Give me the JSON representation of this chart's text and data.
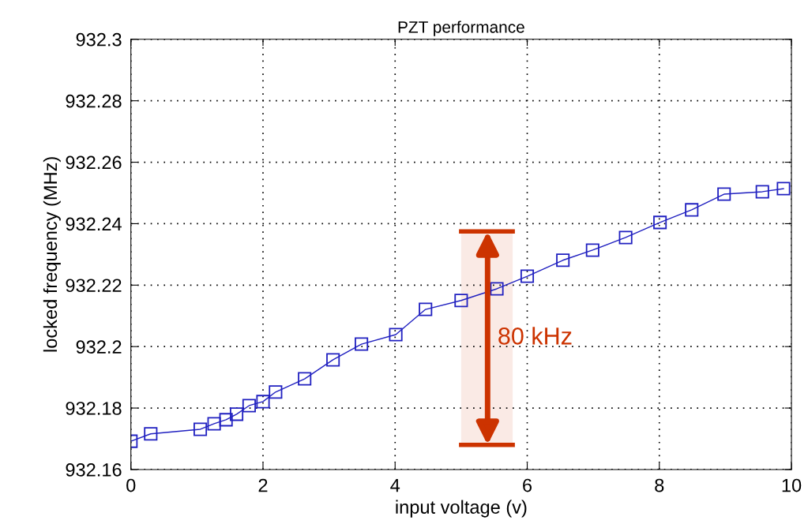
{
  "chart_data": {
    "type": "line",
    "title": "PZT performance",
    "xlabel": "input voltage (v)",
    "ylabel": "locked frequency (MHz)",
    "x": [
      0,
      0.3,
      1.05,
      1.26,
      1.44,
      1.6,
      1.79,
      2.0,
      2.19,
      2.63,
      3.06,
      3.49,
      4.01,
      4.46,
      5.0,
      5.54,
      6.0,
      6.54,
      6.99,
      7.49,
      8.01,
      8.49,
      8.98,
      9.56,
      9.88
    ],
    "series": [
      {
        "color": "#2020c0",
        "values": [
          932.1692,
          932.1716,
          932.1731,
          932.1749,
          932.1762,
          932.178,
          932.1808,
          932.1821,
          932.1852,
          932.1895,
          932.1957,
          932.2008,
          932.2039,
          932.2121,
          932.215,
          932.2188,
          932.2229,
          932.2281,
          932.2314,
          932.2355,
          932.2404,
          932.2445,
          932.2496,
          932.2504,
          932.2514
        ]
      }
    ],
    "xlim": [
      0,
      10
    ],
    "xticks": [
      0,
      2,
      4,
      6,
      8,
      10
    ],
    "ylim": [
      932.16,
      932.3
    ],
    "yticks": [
      {
        "value": 932.16,
        "label": "932.16"
      },
      {
        "value": 932.18,
        "label": "932.18"
      },
      {
        "value": 932.2,
        "label": "932.2"
      },
      {
        "value": 932.22,
        "label": "932.22"
      },
      {
        "value": 932.24,
        "label": "932.24"
      },
      {
        "value": 932.26,
        "label": "932.26"
      },
      {
        "value": 932.28,
        "label": "932.28"
      },
      {
        "value": 932.3,
        "label": "932.3"
      }
    ],
    "bands": [
      {
        "axis": "y",
        "from": 932.168,
        "to": 932.2375,
        "label": "80 kHz",
        "color": "#cc3300"
      }
    ],
    "grid": true,
    "marker": "square",
    "line_style": "solid"
  }
}
